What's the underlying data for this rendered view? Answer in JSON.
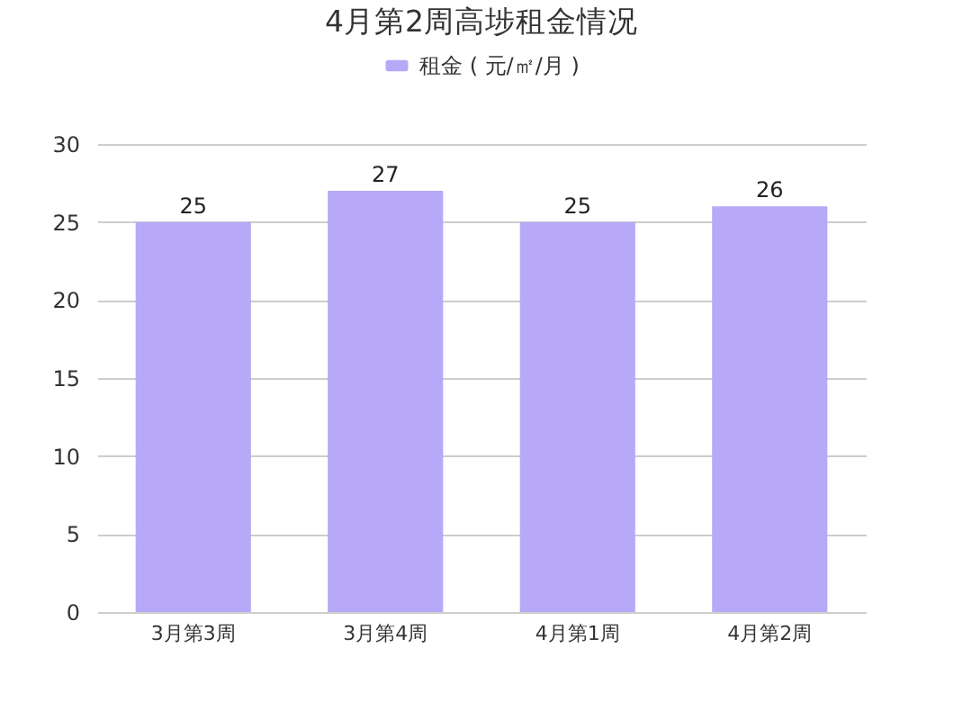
{
  "chart_data": {
    "type": "bar",
    "title": "4月第2周高埗租金情况",
    "categories": [
      "3月第3周",
      "3月第4周",
      "4月第1周",
      "4月第2周"
    ],
    "series": [
      {
        "name": "租金 ( 元/㎡/月 )",
        "color": "#b7a9f7",
        "values": [
          25,
          27,
          25,
          26
        ]
      }
    ],
    "ylim": [
      0,
      30
    ],
    "yticks": [
      0,
      5,
      10,
      15,
      20,
      25,
      30
    ],
    "grid": "y",
    "legend": "top",
    "data_labels": true
  }
}
